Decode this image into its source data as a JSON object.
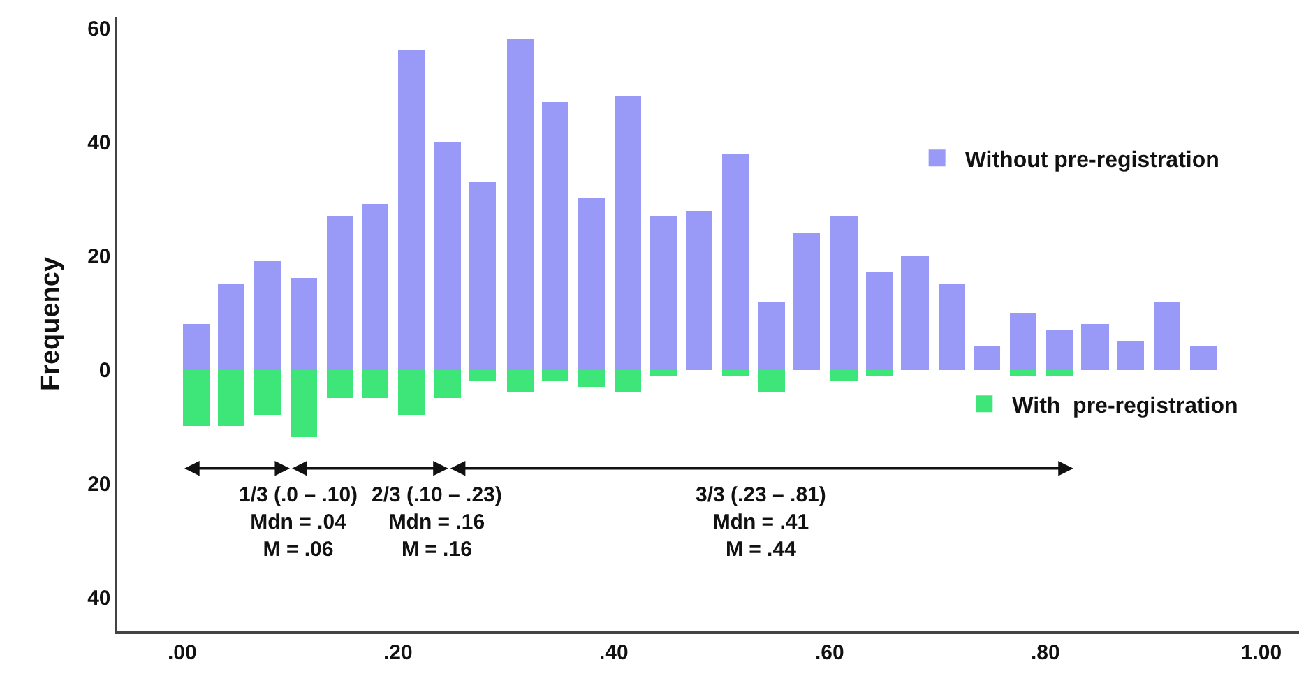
{
  "chart_data": {
    "type": "bar",
    "ylabel": "Frequency",
    "x": [
      0.013,
      0.046,
      0.079,
      0.113,
      0.146,
      0.179,
      0.213,
      0.246,
      0.279,
      0.313,
      0.346,
      0.379,
      0.413,
      0.446,
      0.479,
      0.513,
      0.546,
      0.579,
      0.613,
      0.646,
      0.679,
      0.713,
      0.746,
      0.779,
      0.813,
      0.846,
      0.879,
      0.913,
      0.946
    ],
    "series": [
      {
        "name": "Without pre-registration",
        "color": "#9999f8",
        "values": [
          8,
          15,
          19,
          16,
          27,
          29,
          56,
          40,
          33,
          58,
          47,
          30,
          48,
          27,
          28,
          38,
          12,
          24,
          27,
          17,
          20,
          15,
          4,
          10,
          7,
          8,
          5,
          12,
          4
        ]
      },
      {
        "name": "With  pre-registration",
        "color": "#3ee67a",
        "values": [
          -10,
          -10,
          -8,
          -12,
          -5,
          -5,
          -8,
          -5,
          -2,
          -4,
          -2,
          -3,
          -4,
          -1,
          0,
          -1,
          -4,
          0,
          -2,
          -1,
          0,
          0,
          0,
          -1,
          -1,
          0,
          0,
          0,
          0
        ]
      }
    ],
    "xlim": [
      -0.06,
      1.035
    ],
    "xticks": [
      {
        "value": 0,
        "label": ".00"
      },
      {
        "value": 0.2,
        "label": ".20"
      },
      {
        "value": 0.4,
        "label": ".40"
      },
      {
        "value": 0.6,
        "label": ".60"
      },
      {
        "value": 0.8,
        "label": ".80"
      },
      {
        "value": 1,
        "label": "1.00"
      }
    ],
    "ylim": [
      -46,
      62
    ],
    "yticks": [
      {
        "value": -40,
        "label": "40"
      },
      {
        "value": -20,
        "label": "20"
      },
      0,
      20,
      40,
      60
    ],
    "annotations": [
      "1/3 (.0 – .10)\nMdn = .04\nM = .06",
      "2/3 (.10 – .23)\nMdn = .16\nM = .16",
      "3/3 (.23 – .81)\nMdn = .41\nM = .44"
    ],
    "stacked": true,
    "grid": false,
    "legend": "right"
  }
}
